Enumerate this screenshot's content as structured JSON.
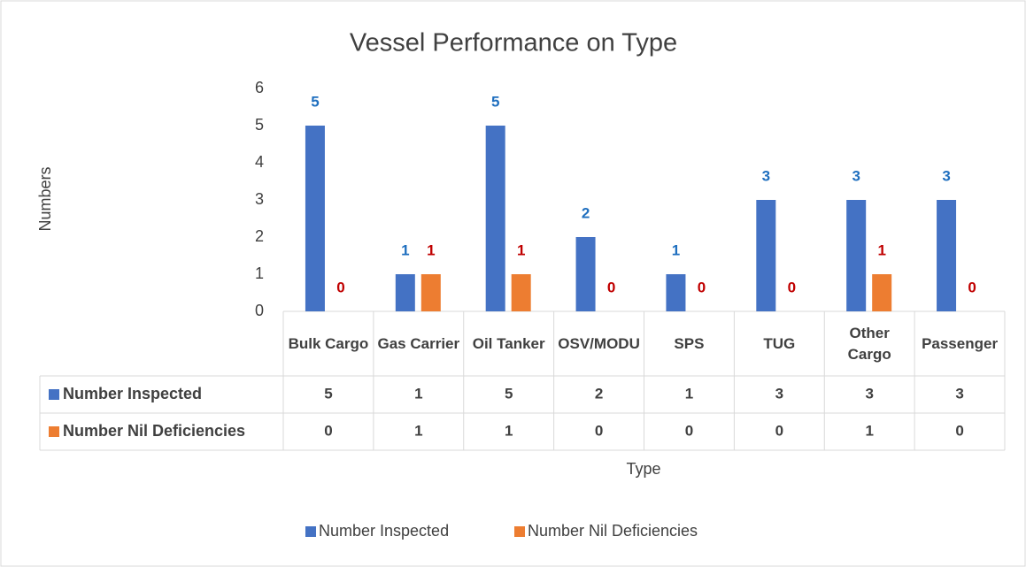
{
  "chart_data": {
    "type": "bar",
    "title": "Vessel Performance on Type",
    "x_label": "Type",
    "y_label": "Numbers",
    "categories": [
      "Bulk Cargo",
      "Gas Carrier",
      "Oil Tanker",
      "OSV/MODU",
      "SPS",
      "TUG",
      "Other Cargo",
      "Passenger"
    ],
    "series": [
      {
        "name": "Number Inspected",
        "color": "#4472c4",
        "label_color": "#1f6fbf",
        "values": [
          5,
          1,
          5,
          2,
          1,
          3,
          3,
          3
        ]
      },
      {
        "name": "Number Nil Deficiencies",
        "color": "#ed7d31",
        "label_color": "#c00000",
        "values": [
          0,
          1,
          1,
          0,
          0,
          0,
          1,
          0
        ]
      }
    ],
    "ylim": [
      0,
      6
    ],
    "yticks": [
      0,
      1,
      2,
      3,
      4,
      5,
      6
    ],
    "grid": false,
    "legend": "bottom"
  }
}
